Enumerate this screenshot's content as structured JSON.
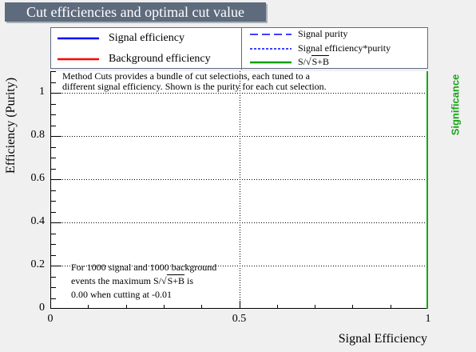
{
  "title": "Cut efficiencies and optimal cut value",
  "legend": {
    "items": [
      {
        "label": "Signal efficiency",
        "color": "#0000ff",
        "style": "solid"
      },
      {
        "label": "Background efficiency",
        "color": "#ff0000",
        "style": "solid"
      },
      {
        "label": "Signal purity",
        "color": "#0000ff",
        "style": "dashed"
      },
      {
        "label": "Signal efficiency*purity",
        "color": "#0000ff",
        "style": "dotted"
      },
      {
        "label_prefix": "S/",
        "label_sqrt": "S+B",
        "color": "#00a000",
        "style": "solid"
      }
    ]
  },
  "notes": {
    "top_line1": "Method Cuts provides a bundle of cut selections, each tuned to a",
    "top_line2": "different signal efficiency. Shown is the purity for each cut selection.",
    "bottom_line1": "For 1000 signal and 1000 background",
    "bottom_line2_prefix": "events the maximum S/",
    "bottom_line2_sqrt": "S+B",
    "bottom_line2_suffix": " is",
    "bottom_line3": "0.00 when cutting at -0.01"
  },
  "chart_data": {
    "type": "line",
    "xlabel": "Signal Efficiency",
    "ylabel": "Efficiency (Purity)",
    "y2label": "Significance",
    "xlim": [
      0,
      1
    ],
    "ylim": [
      0,
      1.1
    ],
    "x_ticks": [
      0,
      0.5,
      1
    ],
    "x_tick_labels": [
      "0",
      "0.5",
      "1"
    ],
    "y_ticks": [
      0,
      0.2,
      0.4,
      0.6,
      0.8,
      1
    ],
    "y_tick_labels": [
      "0",
      "0.2",
      "0.4",
      "0.6",
      "0.8",
      "1"
    ],
    "grid": true,
    "series": [],
    "colors": {
      "axis2": "#1aa41a",
      "plot_bg": "#ffffff",
      "frame": "#000000"
    }
  }
}
